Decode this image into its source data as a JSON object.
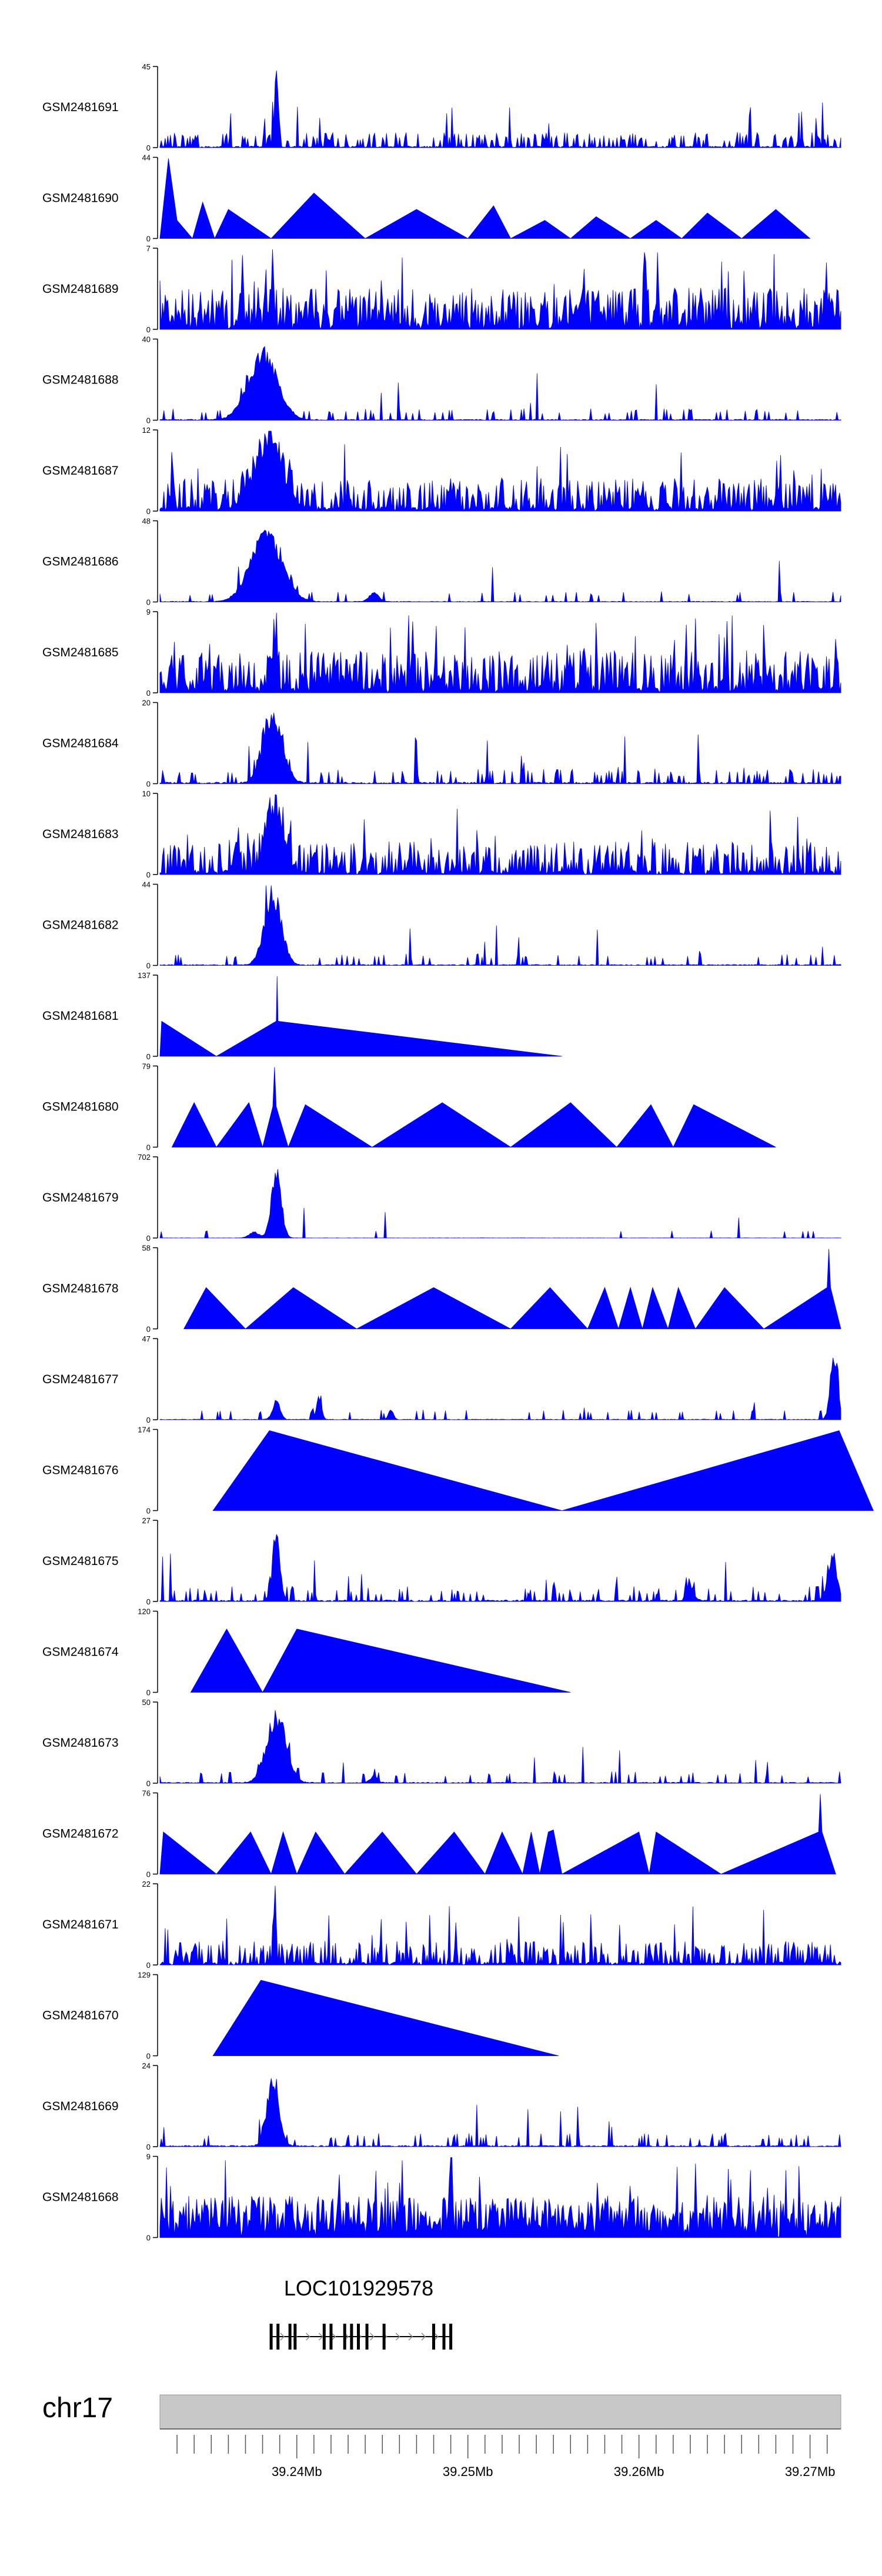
{
  "chart_data": {
    "type": "area",
    "title": "",
    "fill_color": "#0000ff",
    "axis_color": "#000000",
    "ideogram_color": "#c8c8c8",
    "chromosome": "chr17",
    "xlim_mb": [
      39.232,
      39.2718
    ],
    "x_ticks_mb": [
      39.24,
      39.25,
      39.26,
      39.27
    ],
    "x_tick_labels": [
      "39.24Mb",
      "39.25Mb",
      "39.26Mb",
      "39.27Mb"
    ],
    "tracks": [
      {
        "name": "GSM2481691",
        "ymax": 45,
        "ymin": 0,
        "kind": "noise",
        "base": 0.05,
        "spike": 0.4,
        "peaks": [
          [
            39.2388,
            45,
            0.00015
          ]
        ],
        "seed": 11
      },
      {
        "name": "GSM2481690",
        "ymax": 44,
        "ymin": 0,
        "kind": "triangle",
        "points": [
          [
            39.232,
            0
          ],
          [
            39.2325,
            44
          ],
          [
            39.233,
            10
          ],
          [
            39.2339,
            0
          ],
          [
            39.2345,
            20
          ],
          [
            39.2352,
            0
          ],
          [
            39.236,
            16
          ],
          [
            39.2385,
            0
          ],
          [
            39.241,
            25
          ],
          [
            39.244,
            0
          ],
          [
            39.247,
            16
          ],
          [
            39.25,
            0
          ],
          [
            39.2515,
            18
          ],
          [
            39.2525,
            0
          ],
          [
            39.2545,
            10
          ],
          [
            39.256,
            0
          ],
          [
            39.2575,
            12
          ],
          [
            39.2595,
            0
          ],
          [
            39.261,
            10
          ],
          [
            39.2625,
            0
          ],
          [
            39.264,
            14
          ],
          [
            39.266,
            0
          ],
          [
            39.268,
            16
          ],
          [
            39.27,
            0
          ]
        ],
        "extra_spikes": true,
        "seed": 12
      },
      {
        "name": "GSM2481689",
        "ymax": 7,
        "ymin": 0,
        "kind": "noise",
        "base": 0.2,
        "spike": 0.75,
        "peaks": [
          [
            39.2386,
            7,
            0.0001
          ]
        ],
        "seed": 13
      },
      {
        "name": "GSM2481688",
        "ymax": 40,
        "ymin": 0,
        "kind": "noise",
        "base": 0.03,
        "spike": 0.1,
        "peaks": [
          [
            39.238,
            38,
            0.0012
          ]
        ],
        "seed": 14
      },
      {
        "name": "GSM2481687",
        "ymax": 12,
        "ymin": 0,
        "kind": "noise",
        "base": 0.15,
        "spike": 0.55,
        "peaks": [
          [
            39.2383,
            11,
            0.0012
          ]
        ],
        "seed": 15
      },
      {
        "name": "GSM2481686",
        "ymax": 48,
        "ymin": 0,
        "kind": "noise",
        "base": 0.02,
        "spike": 0.08,
        "peaks": [
          [
            39.2382,
            45,
            0.0013
          ],
          [
            39.2445,
            6,
            0.0004
          ]
        ],
        "seed": 16
      },
      {
        "name": "GSM2481685",
        "ymax": 9,
        "ymin": 0,
        "kind": "noise",
        "base": 0.2,
        "spike": 0.7,
        "peaks": [
          [
            39.2388,
            9,
            0.0001
          ]
        ],
        "seed": 17
      },
      {
        "name": "GSM2481684",
        "ymax": 20,
        "ymin": 0,
        "kind": "noise",
        "base": 0.05,
        "spike": 0.2,
        "peaks": [
          [
            39.2386,
            19,
            0.0008
          ]
        ],
        "seed": 18
      },
      {
        "name": "GSM2481683",
        "ymax": 10,
        "ymin": 0,
        "kind": "noise",
        "base": 0.15,
        "spike": 0.55,
        "peaks": [
          [
            39.2387,
            9,
            0.0007
          ]
        ],
        "seed": 19
      },
      {
        "name": "GSM2481682",
        "ymax": 44,
        "ymin": 0,
        "kind": "noise",
        "base": 0.03,
        "spike": 0.1,
        "peaks": [
          [
            39.2386,
            44,
            0.0007
          ]
        ],
        "seed": 20
      },
      {
        "name": "GSM2481681",
        "ymax": 137,
        "ymin": 0,
        "kind": "triangle",
        "points": [
          [
            39.232,
            0
          ],
          [
            39.2321,
            60
          ],
          [
            39.2353,
            0
          ],
          [
            39.2388,
            60
          ],
          [
            39.23885,
            137
          ],
          [
            39.2389,
            60
          ],
          [
            39.2555,
            0
          ]
        ],
        "seed": 21
      },
      {
        "name": "GSM2481680",
        "ymax": 79,
        "ymin": 0,
        "kind": "triangle",
        "points": [
          [
            39.2327,
            0
          ],
          [
            39.234,
            44
          ],
          [
            39.2353,
            0
          ],
          [
            39.2372,
            44
          ],
          [
            39.238,
            0
          ],
          [
            39.2386,
            40
          ],
          [
            39.2387,
            79
          ],
          [
            39.2388,
            40
          ],
          [
            39.2395,
            0
          ],
          [
            39.2405,
            42
          ],
          [
            39.2444,
            0
          ],
          [
            39.2485,
            44
          ],
          [
            39.2525,
            0
          ],
          [
            39.256,
            44
          ],
          [
            39.2587,
            0
          ],
          [
            39.2607,
            42
          ],
          [
            39.262,
            0
          ],
          [
            39.2632,
            42
          ],
          [
            39.268,
            0
          ]
        ],
        "seed": 22
      },
      {
        "name": "GSM2481679",
        "ymax": 702,
        "ymin": 0,
        "kind": "noise",
        "base": 0.005,
        "spike": 0.02,
        "peaks": [
          [
            39.2388,
            680,
            0.0004
          ],
          [
            39.2375,
            60,
            0.0004
          ]
        ],
        "plateau": true,
        "seed": 23
      },
      {
        "name": "GSM2481678",
        "ymax": 58,
        "ymin": 0,
        "kind": "triangle",
        "points": [
          [
            39.2334,
            0
          ],
          [
            39.2347,
            30
          ],
          [
            39.237,
            0
          ],
          [
            39.2398,
            30
          ],
          [
            39.2435,
            0
          ],
          [
            39.248,
            30
          ],
          [
            39.2525,
            0
          ],
          [
            39.2548,
            30
          ],
          [
            39.257,
            0
          ],
          [
            39.258,
            30
          ],
          [
            39.2588,
            0
          ],
          [
            39.2595,
            30
          ],
          [
            39.2602,
            0
          ],
          [
            39.2608,
            30
          ],
          [
            39.2617,
            0
          ],
          [
            39.2623,
            30
          ],
          [
            39.2633,
            0
          ],
          [
            39.265,
            30
          ],
          [
            39.2673,
            0
          ],
          [
            39.271,
            30
          ],
          [
            39.2711,
            58
          ],
          [
            39.2712,
            30
          ],
          [
            39.2718,
            0
          ]
        ],
        "seed": 24
      },
      {
        "name": "GSM2481677",
        "ymax": 47,
        "ymin": 0,
        "kind": "noise",
        "base": 0.02,
        "spike": 0.08,
        "peaks": [
          [
            39.2388,
            12,
            0.0003
          ],
          [
            39.2413,
            16,
            0.0002
          ],
          [
            39.2455,
            6,
            0.0002
          ],
          [
            39.2714,
            46,
            0.0003
          ]
        ],
        "seed": 25
      },
      {
        "name": "GSM2481676",
        "ymax": 174,
        "ymin": 0,
        "kind": "triangle",
        "points": [
          [
            39.2351,
            0
          ],
          [
            39.2384,
            174
          ],
          [
            39.2555,
            0
          ],
          [
            39.2717,
            174
          ],
          [
            39.2737,
            0
          ]
        ],
        "seed": 26
      },
      {
        "name": "GSM2481675",
        "ymax": 27,
        "ymin": 0,
        "kind": "noise",
        "base": 0.05,
        "spike": 0.2,
        "peaks": [
          [
            39.2388,
            26,
            0.0003
          ],
          [
            39.263,
            6,
            0.0003
          ],
          [
            39.2713,
            15,
            0.0004
          ]
        ],
        "seed": 27
      },
      {
        "name": "GSM2481674",
        "ymax": 120,
        "ymin": 0,
        "kind": "triangle",
        "points": [
          [
            39.2338,
            0
          ],
          [
            39.2359,
            95
          ],
          [
            39.238,
            0
          ],
          [
            39.24,
            95
          ],
          [
            39.256,
            0
          ]
        ],
        "seed": 28
      },
      {
        "name": "GSM2481673",
        "ymax": 50,
        "ymin": 0,
        "kind": "noise",
        "base": 0.03,
        "spike": 0.12,
        "peaks": [
          [
            39.2388,
            48,
            0.0008
          ],
          [
            39.2445,
            5,
            0.0003
          ]
        ],
        "seed": 29
      },
      {
        "name": "GSM2481672",
        "ymax": 76,
        "ymin": 0,
        "kind": "triangle",
        "points": [
          [
            39.232,
            0
          ],
          [
            39.2322,
            40
          ],
          [
            39.2353,
            0
          ],
          [
            39.2373,
            40
          ],
          [
            39.2385,
            0
          ],
          [
            39.2392,
            40
          ],
          [
            39.24,
            0
          ],
          [
            39.2411,
            40
          ],
          [
            39.2428,
            0
          ],
          [
            39.245,
            40
          ],
          [
            39.247,
            0
          ],
          [
            39.2492,
            40
          ],
          [
            39.251,
            0
          ],
          [
            39.252,
            40
          ],
          [
            39.2532,
            0
          ],
          [
            39.2537,
            40
          ],
          [
            39.2542,
            0
          ],
          [
            39.2547,
            40
          ],
          [
            39.255,
            42
          ],
          [
            39.2555,
            0
          ],
          [
            39.26,
            40
          ],
          [
            39.2606,
            0
          ],
          [
            39.261,
            40
          ],
          [
            39.2648,
            0
          ],
          [
            39.2705,
            40
          ],
          [
            39.2706,
            76
          ],
          [
            39.2707,
            40
          ],
          [
            39.2715,
            0
          ]
        ],
        "seed": 30
      },
      {
        "name": "GSM2481671",
        "ymax": 22,
        "ymin": 0,
        "kind": "noise",
        "base": 0.1,
        "spike": 0.45,
        "peaks": [
          [
            39.2387,
            21,
            0.0001
          ]
        ],
        "seed": 31
      },
      {
        "name": "GSM2481670",
        "ymax": 129,
        "ymin": 0,
        "kind": "triangle",
        "points": [
          [
            39.2351,
            0
          ],
          [
            39.2379,
            122
          ],
          [
            39.2553,
            0
          ]
        ],
        "seed": 32
      },
      {
        "name": "GSM2481669",
        "ymax": 24,
        "ymin": 0,
        "kind": "noise",
        "base": 0.04,
        "spike": 0.12,
        "peaks": [
          [
            39.2386,
            23,
            0.0005
          ]
        ],
        "seed": 33
      },
      {
        "name": "GSM2481668",
        "ymax": 9,
        "ymin": 0,
        "kind": "noise",
        "base": 0.2,
        "spike": 0.9,
        "peaks": [
          [
            39.249,
            9,
            0.0001
          ]
        ],
        "seed": 34
      }
    ],
    "gene": {
      "name": "LOC101929578",
      "start_mb": 39.2385,
      "end_mb": 39.249,
      "strand": "+",
      "exons_mb": [
        39.2385,
        39.2389,
        39.2396,
        39.2399,
        39.2416,
        39.242,
        39.2428,
        39.2432,
        39.2436,
        39.2441,
        39.2451,
        39.248,
        39.2486,
        39.249
      ]
    }
  }
}
